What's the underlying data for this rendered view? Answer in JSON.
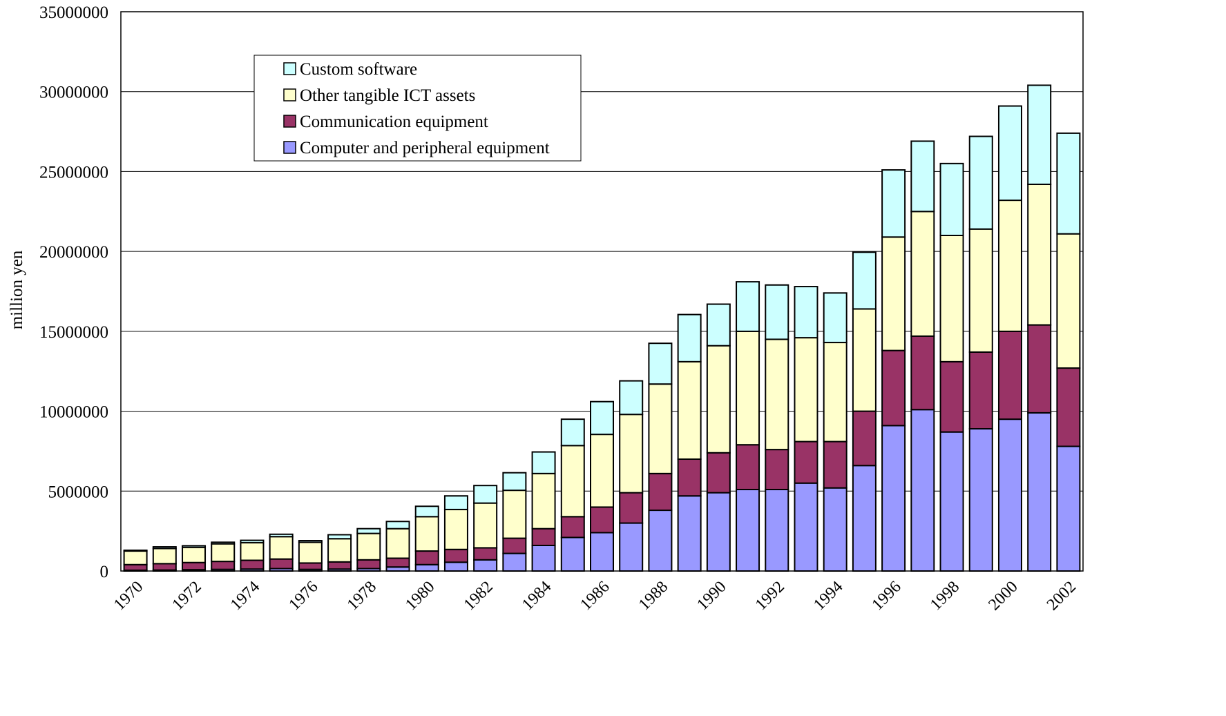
{
  "chart_data": {
    "type": "bar",
    "stacked": true,
    "title": "",
    "xlabel": "",
    "ylabel": "million yen",
    "ylim": [
      0,
      35000000
    ],
    "yticks": [
      0,
      5000000,
      10000000,
      15000000,
      20000000,
      25000000,
      30000000,
      35000000
    ],
    "ytick_labels": [
      "0",
      "5000000",
      "10000000",
      "15000000",
      "20000000",
      "25000000",
      "30000000",
      "35000000"
    ],
    "grid": true,
    "legend_position": "top-left inside plot",
    "categories": [
      "1970",
      "1971",
      "1972",
      "1973",
      "1974",
      "1975",
      "1976",
      "1977",
      "1978",
      "1979",
      "1980",
      "1981",
      "1982",
      "1983",
      "1984",
      "1985",
      "1986",
      "1987",
      "1988",
      "1989",
      "1990",
      "1991",
      "1992",
      "1993",
      "1994",
      "1995",
      "1996",
      "1997",
      "1998",
      "1999",
      "2000",
      "2001",
      "2002"
    ],
    "x_tick_labels": [
      "1970",
      "1972",
      "1974",
      "1976",
      "1978",
      "1980",
      "1982",
      "1984",
      "1986",
      "1988",
      "1990",
      "1992",
      "1994",
      "1996",
      "1998",
      "2000",
      "2002"
    ],
    "series": [
      {
        "name": "Computer and peripheral equipment",
        "color": "#9999ff",
        "values": [
          50000,
          60000,
          80000,
          100000,
          120000,
          150000,
          100000,
          120000,
          150000,
          250000,
          400000,
          550000,
          700000,
          1100000,
          1600000,
          2100000,
          2400000,
          3000000,
          3800000,
          4700000,
          4900000,
          5100000,
          5100000,
          5500000,
          5200000,
          6600000,
          9100000,
          10100000,
          8700000,
          8900000,
          9500000,
          9900000,
          7800000
        ]
      },
      {
        "name": "Communication equipment",
        "color": "#993366",
        "values": [
          350000,
          400000,
          450000,
          500000,
          550000,
          600000,
          400000,
          450000,
          550000,
          550000,
          850000,
          800000,
          750000,
          950000,
          1050000,
          1300000,
          1600000,
          1900000,
          2300000,
          2300000,
          2500000,
          2800000,
          2500000,
          2600000,
          2900000,
          3400000,
          4700000,
          4600000,
          4400000,
          4800000,
          5500000,
          5500000,
          4900000
        ]
      },
      {
        "name": "Other tangible ICT assets",
        "color": "#ffffcc",
        "values": [
          850000,
          950000,
          950000,
          1100000,
          1100000,
          1400000,
          1300000,
          1450000,
          1650000,
          1850000,
          2150000,
          2500000,
          2800000,
          3000000,
          3450000,
          4450000,
          4550000,
          4900000,
          5600000,
          6100000,
          6700000,
          7100000,
          6900000,
          6500000,
          6200000,
          6400000,
          7100000,
          7800000,
          7900000,
          7700000,
          8200000,
          8800000,
          8400000
        ]
      },
      {
        "name": "Custom software",
        "color": "#ccffff",
        "values": [
          50000,
          100000,
          100000,
          100000,
          150000,
          150000,
          100000,
          250000,
          300000,
          450000,
          650000,
          850000,
          1100000,
          1100000,
          1350000,
          1650000,
          2050000,
          2100000,
          2550000,
          2950000,
          2600000,
          3100000,
          3400000,
          3200000,
          3100000,
          3550000,
          4200000,
          4400000,
          4500000,
          5800000,
          5900000,
          6200000,
          6300000
        ]
      }
    ]
  }
}
